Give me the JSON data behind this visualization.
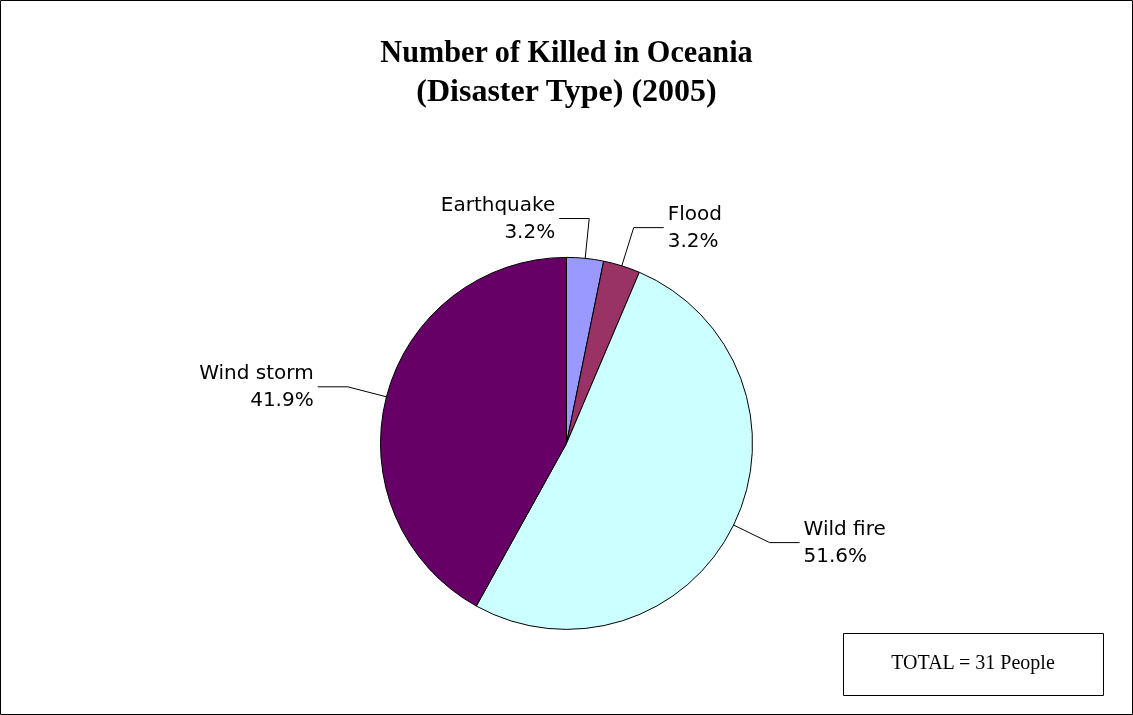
{
  "chart_data": {
    "type": "pie",
    "title": "Number of Killed in Oceania\n(Disaster Type) (2005)",
    "categories": [
      "Earthquake",
      "Flood",
      "Wild fire",
      "Wind storm"
    ],
    "values": [
      3.2,
      3.2,
      51.6,
      41.9
    ],
    "colors": [
      "#9999ff",
      "#993366",
      "#ccffff",
      "#660066"
    ],
    "value_labels": [
      "3.2%",
      "3.2%",
      "51.6%",
      "41.9%"
    ],
    "legend": false,
    "annotations": [
      "TOTAL = 31 People"
    ]
  }
}
